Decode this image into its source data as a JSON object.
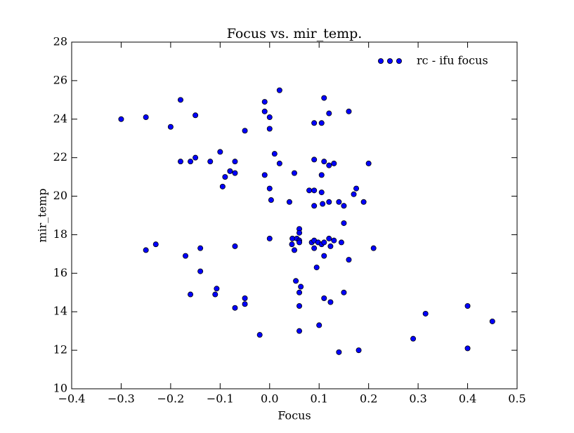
{
  "chart_data": {
    "type": "scatter",
    "title": "Focus vs. mir_temp.",
    "x_label": "Focus",
    "y_label": "mir_temp",
    "legend": "upper right",
    "xlim": [
      -0.4,
      0.5
    ],
    "xticks": [
      {
        "value": -0.4,
        "label": "−0.4"
      },
      {
        "value": -0.3,
        "label": "−0.3"
      },
      {
        "value": -0.2,
        "label": "−0.2"
      },
      {
        "value": -0.1,
        "label": "−0.1"
      },
      {
        "value": 0,
        "label": "0.0"
      },
      0.1,
      0.2,
      0.3,
      0.4,
      0.5
    ],
    "ylim": [
      10,
      28
    ],
    "yticks": [
      10,
      12,
      14,
      16,
      18,
      20,
      22,
      24,
      26,
      28
    ],
    "series": [
      {
        "name": "rc - ifu focus",
        "color": "#0000ff",
        "x": [
          -0.3,
          -0.25,
          -0.2,
          -0.18,
          -0.15,
          -0.18,
          -0.16,
          -0.15,
          -0.12,
          -0.1,
          -0.07,
          -0.08,
          -0.07,
          -0.09,
          -0.095,
          -0.05,
          -0.01,
          -0.01,
          0.0,
          0.0,
          0.02,
          0.01,
          0.02,
          -0.01,
          0.0,
          0.003,
          0.04,
          0.05,
          0.09,
          0.105,
          0.11,
          0.12,
          0.16,
          0.09,
          0.11,
          0.12,
          0.13,
          0.2,
          0.105,
          0.08,
          0.09,
          0.105,
          0.175,
          0.17,
          0.09,
          0.107,
          0.12,
          0.14,
          0.15,
          0.19,
          0.15,
          0.0,
          0.06,
          0.06,
          0.046,
          0.045,
          0.05,
          0.055,
          0.06,
          0.06,
          0.085,
          0.09,
          0.098,
          0.105,
          0.11,
          0.12,
          0.13,
          0.123,
          0.145,
          0.09,
          0.21,
          0.11,
          0.16,
          0.095,
          -0.25,
          -0.23,
          -0.14,
          -0.07,
          -0.17,
          -0.14,
          -0.16,
          -0.11,
          -0.107,
          -0.07,
          -0.05,
          -0.05,
          -0.02,
          0.053,
          0.063,
          0.06,
          0.06,
          0.11,
          0.123,
          0.15,
          0.06,
          0.1,
          0.14,
          0.18,
          0.29,
          0.315,
          0.4,
          0.4,
          0.45
        ],
        "values": [
          24.0,
          24.1,
          23.6,
          25.0,
          24.2,
          21.8,
          21.8,
          22.0,
          21.8,
          22.3,
          21.8,
          21.3,
          21.2,
          21.0,
          20.5,
          23.4,
          24.9,
          24.4,
          24.1,
          23.5,
          25.5,
          22.2,
          21.7,
          21.1,
          20.4,
          19.8,
          19.7,
          21.2,
          23.8,
          23.8,
          25.1,
          24.3,
          24.4,
          21.9,
          21.8,
          21.6,
          21.7,
          21.7,
          21.1,
          20.3,
          20.3,
          20.2,
          20.4,
          20.1,
          19.5,
          19.6,
          19.7,
          19.7,
          19.5,
          19.7,
          18.6,
          17.8,
          18.3,
          18.1,
          17.8,
          17.5,
          17.2,
          17.8,
          17.7,
          17.6,
          17.6,
          17.7,
          17.6,
          17.5,
          17.6,
          17.8,
          17.7,
          17.4,
          17.6,
          17.3,
          17.3,
          16.9,
          16.7,
          16.3,
          17.2,
          17.5,
          17.3,
          17.4,
          16.9,
          16.1,
          14.9,
          14.9,
          15.2,
          14.2,
          14.7,
          14.4,
          12.8,
          15.6,
          15.3,
          15.0,
          14.3,
          14.7,
          14.5,
          15.0,
          13.0,
          13.3,
          11.9,
          12.0,
          12.6,
          13.9,
          14.3,
          12.1,
          13.5
        ]
      }
    ]
  }
}
